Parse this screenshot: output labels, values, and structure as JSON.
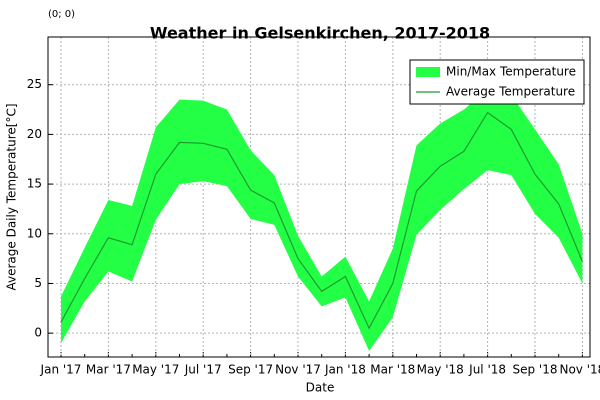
{
  "chart_data": {
    "type": "band_line",
    "title": "Weather in Gelsenkirchen, 2017-2018",
    "annotation": "(0; 0)",
    "xlabel": "Date",
    "ylabel": "Average Daily Temperature[°C]",
    "categories": [
      "Jan '17",
      null,
      "Mar '17",
      null,
      "May '17",
      null,
      "Jul '17",
      null,
      "Sep '17",
      null,
      "Nov '17",
      null,
      "Jan '18",
      null,
      "Mar '18",
      null,
      "May '18",
      null,
      "Jul '18",
      null,
      "Sep '18",
      null,
      "Nov '18"
    ],
    "band": {
      "name": "Min/Max Temperature",
      "color": "#22ff44",
      "lower": [
        -1.0,
        3.2,
        6.2,
        5.2,
        11.4,
        15.0,
        15.3,
        14.8,
        11.5,
        10.9,
        5.7,
        2.7,
        3.6,
        -1.8,
        1.6,
        9.9,
        12.4,
        14.5,
        16.4,
        15.9,
        12.0,
        9.6,
        5.0
      ],
      "upper": [
        3.7,
        8.6,
        13.4,
        12.8,
        20.7,
        23.5,
        23.4,
        22.5,
        18.4,
        15.9,
        9.8,
        5.7,
        7.7,
        3.2,
        8.5,
        18.9,
        21.1,
        22.5,
        24.5,
        24.0,
        20.5,
        17.0,
        10.0
      ]
    },
    "series": [
      {
        "name": "Average Temperature",
        "color": "#1f9a32",
        "values": [
          1.1,
          5.5,
          9.6,
          8.9,
          16.0,
          19.2,
          19.1,
          18.5,
          14.4,
          13.1,
          7.5,
          4.2,
          5.7,
          0.5,
          5.0,
          14.3,
          16.8,
          18.3,
          22.2,
          20.5,
          16.0,
          13.0,
          7.2
        ]
      }
    ],
    "ylim": [
      -2.4,
      29.8
    ],
    "yticks": [
      0,
      5,
      10,
      15,
      20,
      25
    ],
    "grid": true,
    "legend": "upper right"
  }
}
